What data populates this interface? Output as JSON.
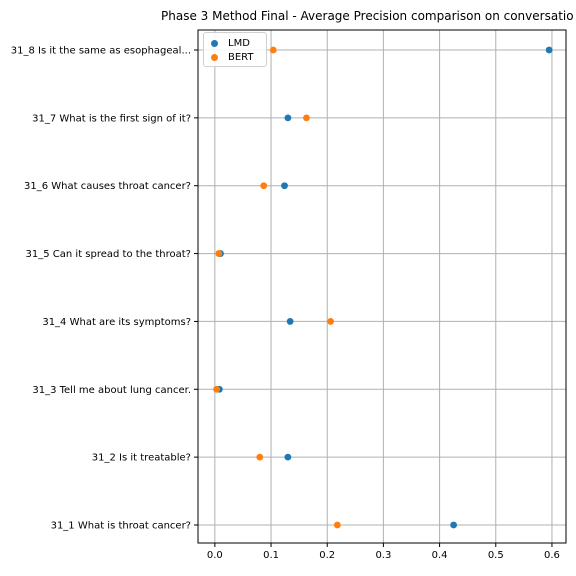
{
  "chart_data": {
    "type": "scatter",
    "title": "Phase 3 Method Final - Average Precision comparison on conversatio",
    "xlabel": "",
    "ylabel": "",
    "xlim": [
      -0.03,
      0.625
    ],
    "grid": true,
    "legend_position": "top-left",
    "x_ticks": [
      "0.0",
      "0.1",
      "0.2",
      "0.3",
      "0.4",
      "0.5",
      "0.6"
    ],
    "categories": [
      "31_1 What is throat cancer?",
      "31_2 Is it treatable?",
      "31_3 Tell me about lung cancer.",
      "31_4 What are its symptoms?",
      "31_5 Can it spread to the throat?",
      "31_6 What causes throat cancer?",
      "31_7 What is the first sign of it?",
      "31_8 Is it the same as esophageal..."
    ],
    "series": [
      {
        "name": "LMD",
        "color": "#1f77b4",
        "values": [
          0.425,
          0.13,
          0.008,
          0.134,
          0.01,
          0.124,
          0.13,
          0.595
        ]
      },
      {
        "name": "BERT",
        "color": "#ff7f0e",
        "values": [
          0.218,
          0.08,
          0.003,
          0.206,
          0.007,
          0.087,
          0.163,
          0.104
        ]
      }
    ]
  }
}
